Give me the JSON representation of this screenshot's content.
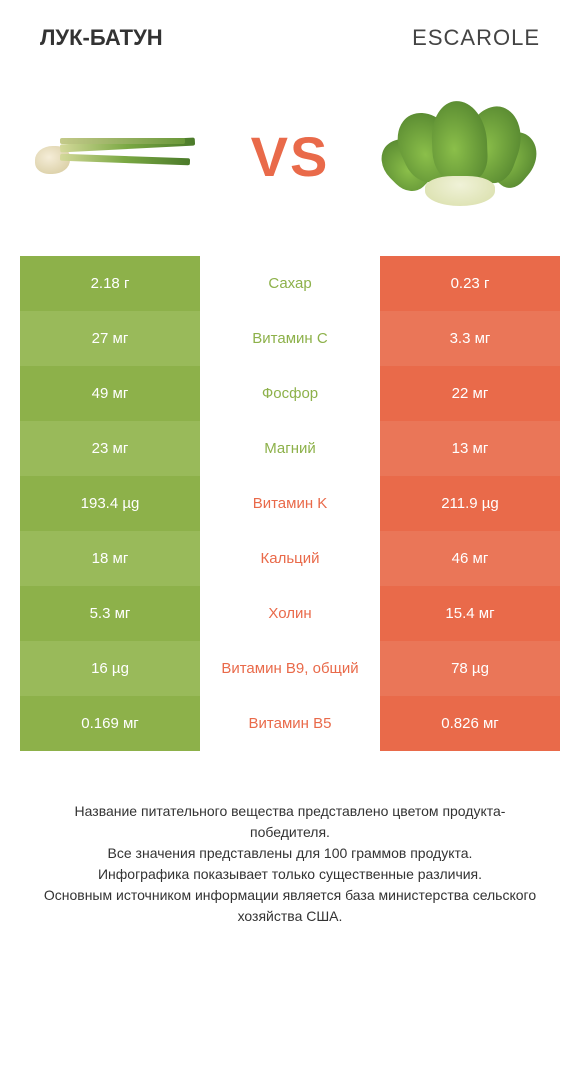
{
  "header": {
    "left_title": "ЛУК-БАТУН",
    "right_title": "ESCAROLE"
  },
  "vs_label": "VS",
  "colors": {
    "left_primary": "#8db14a",
    "left_alt": "#99ba5a",
    "right_primary": "#e96a4a",
    "right_alt": "#ea7658",
    "vs_color": "#e96a4a"
  },
  "rows": [
    {
      "left": "2.18 г",
      "label": "Сахар",
      "right": "0.23 г",
      "winner": "left"
    },
    {
      "left": "27 мг",
      "label": "Витамин C",
      "right": "3.3 мг",
      "winner": "left"
    },
    {
      "left": "49 мг",
      "label": "Фосфор",
      "right": "22 мг",
      "winner": "left"
    },
    {
      "left": "23 мг",
      "label": "Магний",
      "right": "13 мг",
      "winner": "left"
    },
    {
      "left": "193.4 µg",
      "label": "Витамин K",
      "right": "211.9 µg",
      "winner": "right"
    },
    {
      "left": "18 мг",
      "label": "Кальций",
      "right": "46 мг",
      "winner": "right"
    },
    {
      "left": "5.3 мг",
      "label": "Холин",
      "right": "15.4 мг",
      "winner": "right"
    },
    {
      "left": "16 µg",
      "label": "Витамин B9, общий",
      "right": "78 µg",
      "winner": "right"
    },
    {
      "left": "0.169 мг",
      "label": "Витамин B5",
      "right": "0.826 мг",
      "winner": "right"
    }
  ],
  "footer": {
    "line1": "Название питательного вещества представлено цветом продукта-победителя.",
    "line2": "Все значения представлены для 100 граммов продукта.",
    "line3": "Инфографика показывает только существенные различия.",
    "line4": "Основным источником информации является база министерства сельского хозяйства США."
  }
}
